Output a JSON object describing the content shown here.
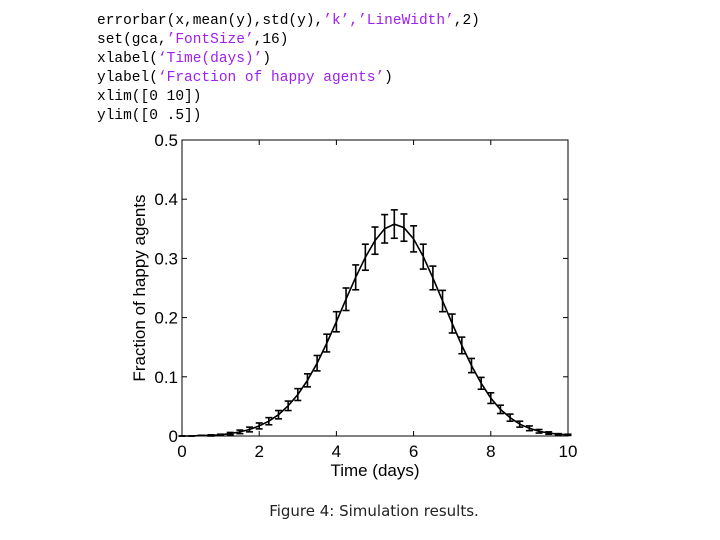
{
  "code_lines": [
    {
      "plain": "errorbar(x,mean(y),std(y),",
      "str": "’k’,’LineWidth’",
      "tail": ",2)"
    },
    {
      "plain": "set(gca,",
      "str": "’FontSize’",
      "tail": ",16)"
    },
    {
      "plain": "xlabel(",
      "str": "‘Time(days)’",
      "tail": ")"
    },
    {
      "plain": "ylabel(",
      "str": "‘Fraction of happy agents’",
      "tail": ")"
    },
    {
      "plain": "xlim([0 10])",
      "str": "",
      "tail": ""
    },
    {
      "plain": "ylim([0 .5])",
      "str": "",
      "tail": ""
    }
  ],
  "caption": "Figure 4: Simulation results.",
  "chart_data": {
    "type": "line",
    "xlabel": "Time (days)",
    "ylabel": "Fraction of happy agents",
    "xlim": [
      0,
      10
    ],
    "ylim": [
      0,
      0.5
    ],
    "xticks": [
      0,
      2,
      4,
      6,
      8,
      10
    ],
    "yticks": [
      0,
      0.1,
      0.2,
      0.3,
      0.4,
      0.5
    ],
    "ytick_labels": [
      "0",
      "0.1",
      "0.2",
      "0.3",
      "0.4",
      "0.5"
    ],
    "grid": false,
    "color": "#000000",
    "series": [
      {
        "x": [
          0,
          0.25,
          0.5,
          0.75,
          1,
          1.25,
          1.5,
          1.75,
          2,
          2.25,
          2.5,
          2.75,
          3,
          3.25,
          3.5,
          3.75,
          4,
          4.25,
          4.5,
          4.75,
          5,
          5.25,
          5.5,
          5.75,
          6,
          6.25,
          6.5,
          6.75,
          7,
          7.25,
          7.5,
          7.75,
          8,
          8.25,
          8.5,
          8.75,
          9,
          9.25,
          9.5,
          9.75,
          10
        ],
        "y": [
          0,
          0,
          0.001,
          0.001,
          0.002,
          0.004,
          0.007,
          0.011,
          0.017,
          0.025,
          0.036,
          0.051,
          0.07,
          0.094,
          0.123,
          0.157,
          0.193,
          0.231,
          0.268,
          0.302,
          0.33,
          0.35,
          0.358,
          0.352,
          0.333,
          0.303,
          0.267,
          0.228,
          0.19,
          0.153,
          0.119,
          0.089,
          0.064,
          0.045,
          0.031,
          0.02,
          0.013,
          0.008,
          0.005,
          0.003,
          0.002
        ],
        "err": [
          0,
          0,
          0,
          0.001,
          0.001,
          0.002,
          0.003,
          0.004,
          0.005,
          0.006,
          0.007,
          0.008,
          0.01,
          0.011,
          0.013,
          0.015,
          0.017,
          0.019,
          0.021,
          0.022,
          0.023,
          0.024,
          0.024,
          0.023,
          0.022,
          0.021,
          0.02,
          0.018,
          0.016,
          0.014,
          0.012,
          0.01,
          0.009,
          0.007,
          0.006,
          0.005,
          0.004,
          0.003,
          0.002,
          0.001,
          0.001
        ]
      }
    ]
  }
}
